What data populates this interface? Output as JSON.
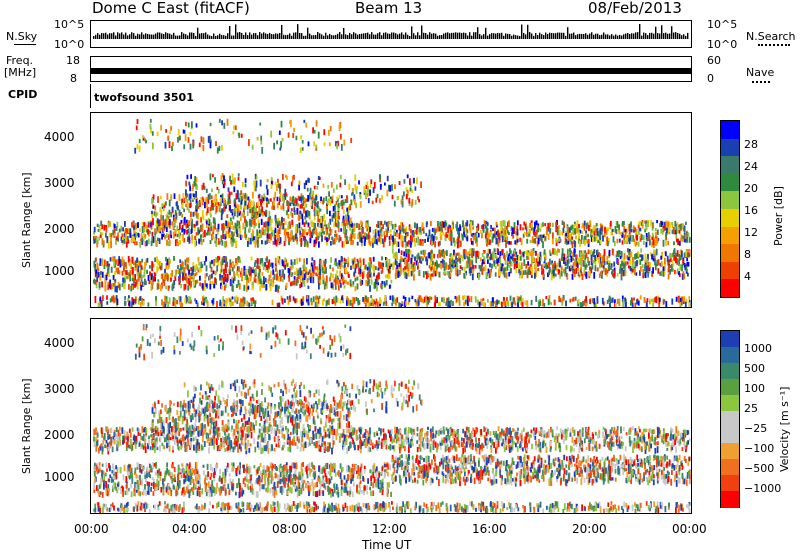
{
  "header": {
    "station": "Dome C East (fitACF)",
    "beam": "Beam 13",
    "date": "08/Feb/2013"
  },
  "top_panels": {
    "nsky_label": "N.Sky",
    "nsky_ticks": [
      "10^5",
      "10^0"
    ],
    "nsearch_label": "N.Search",
    "nsearch_ticks": [
      "10^5",
      "10^0"
    ],
    "freq_label": "Freq.",
    "freq_unit": "[MHz]",
    "freq_ticks": [
      "18",
      "8"
    ],
    "nave_label": "Nave",
    "nave_ticks": [
      "60",
      "0"
    ],
    "cpid_label": "CPID",
    "cpid_value": "twofsound 3501"
  },
  "chart_data": [
    {
      "type": "heatmap",
      "name": "power-panel",
      "ylabel": "Slant Range [km]",
      "ylim": [
        200,
        4500
      ],
      "yticks": [
        "1000",
        "2000",
        "3000",
        "4000"
      ],
      "xlim": [
        0,
        24
      ],
      "colorbar_label": "Power [dB]",
      "colorbar_ticks": [
        "28",
        "24",
        "20",
        "16",
        "12",
        "8",
        "4"
      ],
      "colors": [
        "#0000ff",
        "#1a3fb0",
        "#3a7a6a",
        "#2e8b3e",
        "#8cc63f",
        "#e8d000",
        "#f5a000",
        "#f07800",
        "#f04000",
        "#ff0000"
      ]
    },
    {
      "type": "heatmap",
      "name": "velocity-panel",
      "ylabel": "Slant Range [km]",
      "ylim": [
        200,
        4500
      ],
      "yticks": [
        "1000",
        "2000",
        "3000",
        "4000"
      ],
      "xlim": [
        0,
        24
      ],
      "xlabel": "Time UT",
      "xticks": [
        "00:00",
        "04:00",
        "08:00",
        "12:00",
        "16:00",
        "20:00",
        "00:00"
      ],
      "colorbar_label": "Velocity [m s⁻¹]",
      "colorbar_ticks": [
        "1000",
        "500",
        "100",
        "25",
        "−25",
        "−100",
        "−500",
        "−1000"
      ],
      "colors": [
        "#1e3fb4",
        "#2a6a9a",
        "#3a8a6a",
        "#5aa040",
        "#8cc63f",
        "#c8c8c8",
        "#c8c8c8",
        "#f0a030",
        "#f07020",
        "#f04010",
        "#ff0000"
      ]
    }
  ]
}
